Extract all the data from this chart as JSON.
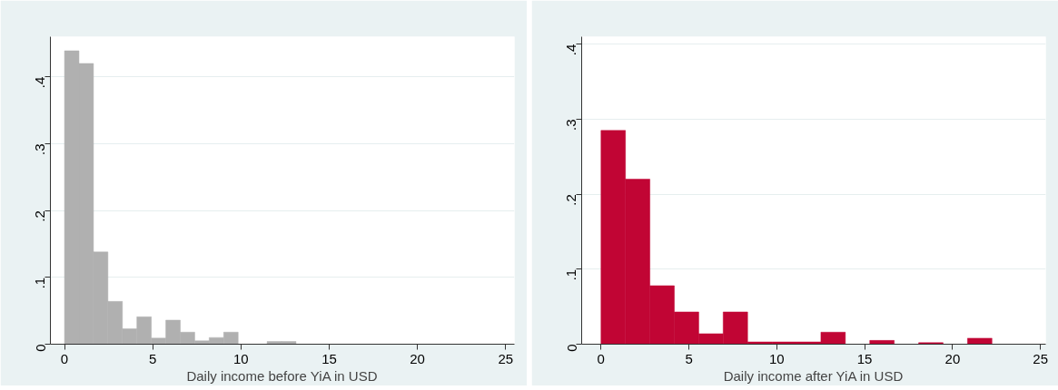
{
  "chart_data": [
    {
      "type": "histogram",
      "xlabel": "Daily income before YiA in USD",
      "color": "#b0b0b0",
      "bins": [
        0,
        0.82,
        1.64,
        2.46,
        3.28,
        4.1,
        4.92,
        5.74,
        6.56,
        7.38,
        8.2,
        9.02,
        9.84,
        10.66,
        11.48,
        12.3,
        13.12
      ],
      "values": [
        0.439,
        0.42,
        0.138,
        0.064,
        0.023,
        0.041,
        0.009,
        0.036,
        0.018,
        0.005,
        0.01,
        0.018,
        0,
        0,
        0.004,
        0.004
      ],
      "xlim": [
        -0.8,
        25.5
      ],
      "ylim": [
        0,
        0.46
      ],
      "xticks": [
        0,
        5,
        10,
        15,
        20,
        25
      ],
      "yticks": [
        0,
        {
          "value": 0.1,
          "label": ".1"
        },
        {
          "value": 0.2,
          "label": ".2"
        },
        {
          "value": 0.3,
          "label": ".3"
        },
        {
          "value": 0.4,
          "label": ".4"
        }
      ],
      "grid": "y"
    },
    {
      "type": "histogram",
      "xlabel": "Daily income after YiA in USD",
      "color": "#c10534",
      "bins": [
        0,
        1.39,
        2.78,
        4.17,
        5.56,
        6.95,
        8.34,
        9.73,
        11.12,
        12.51,
        13.9,
        15.29,
        16.68,
        18.07,
        19.46,
        20.85,
        22.24
      ],
      "values": [
        0.285,
        0.22,
        0.078,
        0.043,
        0.014,
        0.043,
        0.003,
        0.003,
        0.003,
        0.016,
        0,
        0.005,
        0,
        0.002,
        0,
        0.008
      ],
      "xlim": [
        -1.1,
        25.3
      ],
      "ylim": [
        0,
        0.41
      ],
      "xticks": [
        0,
        5,
        10,
        15,
        20,
        25
      ],
      "yticks": [
        0,
        {
          "value": 0.1,
          "label": ".1"
        },
        {
          "value": 0.2,
          "label": ".2"
        },
        {
          "value": 0.3,
          "label": ".3"
        },
        {
          "value": 0.4,
          "label": ".4"
        }
      ],
      "grid": "y"
    }
  ]
}
